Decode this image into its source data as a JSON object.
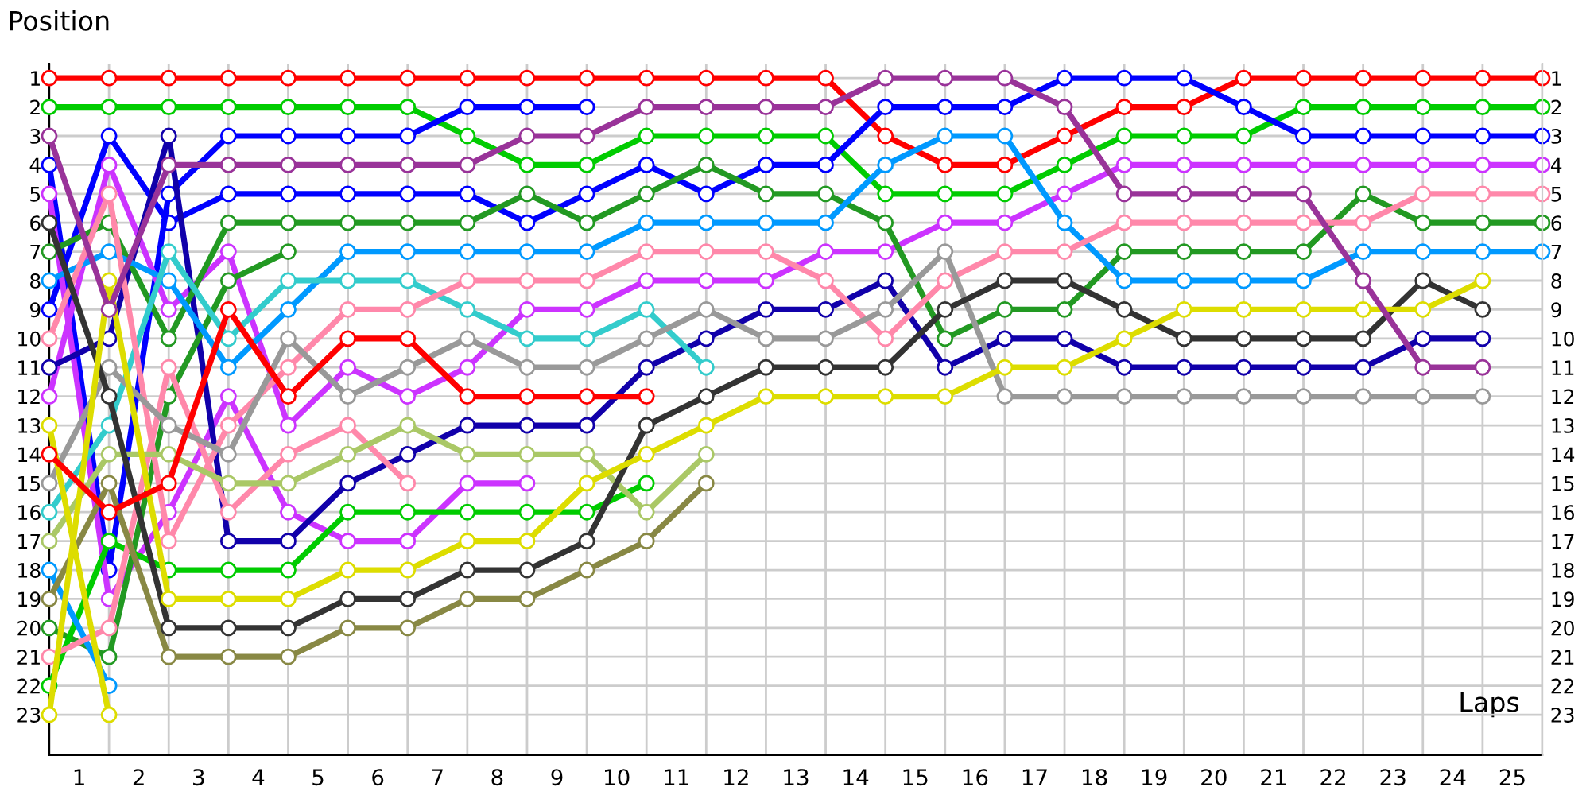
{
  "chart_data": {
    "type": "line",
    "xlabel": "Laps",
    "ylabel": "Position",
    "x": [
      0,
      1,
      2,
      3,
      4,
      5,
      6,
      7,
      8,
      9,
      10,
      11,
      12,
      13,
      14,
      15,
      16,
      17,
      18,
      19,
      20,
      21,
      22,
      23,
      24,
      25
    ],
    "xlim": [
      0,
      25
    ],
    "xticks": [
      {
        "value": 0.5,
        "label": "1"
      },
      {
        "value": 1.5,
        "label": "2"
      },
      {
        "value": 2.5,
        "label": "3"
      },
      {
        "value": 3.5,
        "label": "4"
      },
      {
        "value": 4.5,
        "label": "5"
      },
      {
        "value": 5.5,
        "label": "6"
      },
      {
        "value": 6.5,
        "label": "7"
      },
      {
        "value": 7.5,
        "label": "8"
      },
      {
        "value": 8.5,
        "label": "9"
      },
      {
        "value": 9.5,
        "label": "10"
      },
      {
        "value": 10.5,
        "label": "11"
      },
      {
        "value": 11.5,
        "label": "12"
      },
      {
        "value": 12.5,
        "label": "13"
      },
      {
        "value": 13.5,
        "label": "14"
      },
      {
        "value": 14.5,
        "label": "15"
      },
      {
        "value": 15.5,
        "label": "16"
      },
      {
        "value": 16.5,
        "label": "17"
      },
      {
        "value": 17.5,
        "label": "18"
      },
      {
        "value": 18.5,
        "label": "19"
      },
      {
        "value": 19.5,
        "label": "20"
      },
      {
        "value": 20.5,
        "label": "21"
      },
      {
        "value": 21.5,
        "label": "22"
      },
      {
        "value": 22.5,
        "label": "23"
      },
      {
        "value": 23.5,
        "label": "24"
      },
      {
        "value": 24.5,
        "label": "25"
      }
    ],
    "ylim": [
      24.4,
      0.5
    ],
    "yticks": [
      1,
      2,
      3,
      4,
      5,
      6,
      7,
      8,
      9,
      10,
      11,
      12,
      13,
      14,
      15,
      16,
      17,
      18,
      19,
      20,
      21,
      22,
      23
    ],
    "y2lim": [
      24.4,
      0.5
    ],
    "y2ticks": [
      1,
      2,
      3,
      4,
      5,
      6,
      7,
      8,
      9,
      10,
      11,
      12,
      13,
      14,
      15,
      16,
      17,
      18,
      19,
      20,
      21,
      22,
      23
    ],
    "grid": true,
    "marker": "circle",
    "line_style": "solid",
    "series": [
      {
        "color": "#ff0000",
        "values": [
          1,
          1,
          1,
          1,
          1,
          1,
          1,
          1,
          1,
          1,
          1,
          1,
          1,
          1,
          3,
          4,
          4,
          3,
          2,
          2,
          1,
          1,
          1,
          1,
          1,
          1
        ]
      },
      {
        "color": "#00cc00",
        "values": [
          2,
          2,
          2,
          2,
          2,
          2,
          2,
          3,
          4,
          4,
          3,
          3,
          3,
          3,
          5,
          5,
          5,
          4,
          3,
          3,
          3,
          2,
          2,
          2,
          2,
          2
        ]
      },
      {
        "color": "#0000ff",
        "values": [
          9,
          3,
          6,
          5,
          5,
          5,
          5,
          5,
          6,
          5,
          4,
          5,
          4,
          4,
          2,
          2,
          2,
          1,
          1,
          1,
          2,
          3,
          3,
          3,
          3,
          3
        ]
      },
      {
        "color": "#0000ff",
        "values": [
          4,
          18,
          5,
          3,
          3,
          3,
          3,
          2,
          2,
          2,
          null,
          null,
          null,
          null,
          null,
          null,
          null,
          null,
          null,
          null,
          null,
          null,
          null,
          null,
          null,
          null
        ]
      },
      {
        "color": "#cc33ff",
        "values": [
          12,
          4,
          9,
          7,
          13,
          11,
          12,
          11,
          9,
          9,
          8,
          8,
          8,
          7,
          7,
          6,
          6,
          5,
          4,
          4,
          4,
          4,
          4,
          4,
          4,
          4
        ]
      },
      {
        "color": "#cc33ff",
        "values": [
          5,
          19,
          16,
          12,
          16,
          17,
          17,
          15,
          15,
          null,
          null,
          null,
          null,
          null,
          null,
          null,
          null,
          null,
          null,
          null,
          null,
          null,
          null,
          null,
          null,
          null
        ]
      },
      {
        "color": "#1100aa",
        "values": [
          11,
          10,
          3,
          17,
          17,
          15,
          14,
          13,
          13,
          13,
          11,
          10,
          9,
          9,
          8,
          11,
          10,
          10,
          11,
          11,
          11,
          11,
          11,
          10,
          10,
          null
        ]
      },
      {
        "color": "#229922",
        "values": [
          7,
          6,
          10,
          6,
          6,
          6,
          6,
          6,
          5,
          6,
          5,
          4,
          5,
          5,
          6,
          10,
          9,
          9,
          7,
          7,
          7,
          7,
          5,
          6,
          6,
          6
        ]
      },
      {
        "color": "#229922",
        "values": [
          20,
          21,
          12,
          8,
          7,
          null,
          null,
          null,
          null,
          null,
          null,
          null,
          null,
          null,
          null,
          null,
          null,
          null,
          null,
          null,
          null,
          null,
          null,
          null,
          null,
          null
        ]
      },
      {
        "color": "#00cc00",
        "values": [
          22,
          17,
          18,
          18,
          18,
          16,
          16,
          16,
          16,
          16,
          15,
          null,
          null,
          null,
          null,
          null,
          null,
          null,
          null,
          null,
          null,
          null,
          null,
          null,
          null,
          null
        ]
      },
      {
        "color": "#0099ff",
        "values": [
          8,
          7,
          8,
          11,
          9,
          7,
          7,
          7,
          7,
          7,
          6,
          6,
          6,
          6,
          4,
          3,
          3,
          6,
          8,
          8,
          8,
          8,
          7,
          7,
          7,
          7
        ]
      },
      {
        "color": "#0099ff",
        "values": [
          18,
          22,
          null,
          null,
          null,
          null,
          null,
          null,
          null,
          null,
          null,
          null,
          null,
          null,
          null,
          null,
          null,
          null,
          null,
          null,
          null,
          null,
          null,
          null,
          null,
          null
        ]
      },
      {
        "color": "#33cccc",
        "values": [
          16,
          13,
          7,
          10,
          8,
          8,
          8,
          9,
          10,
          10,
          9,
          11,
          null,
          null,
          null,
          null,
          null,
          null,
          null,
          null,
          null,
          null,
          null,
          null,
          null,
          null
        ]
      },
      {
        "color": "#ff88aa",
        "values": [
          10,
          5,
          17,
          13,
          11,
          9,
          9,
          8,
          8,
          8,
          7,
          7,
          7,
          8,
          10,
          8,
          7,
          7,
          6,
          6,
          6,
          6,
          6,
          5,
          5,
          5
        ]
      },
      {
        "color": "#ff88aa",
        "values": [
          21,
          20,
          11,
          16,
          14,
          13,
          15,
          null,
          null,
          null,
          null,
          null,
          null,
          null,
          null,
          null,
          null,
          null,
          null,
          null,
          null,
          null,
          null,
          null,
          null,
          null
        ]
      },
      {
        "color": "#999999",
        "values": [
          15,
          11,
          13,
          14,
          10,
          12,
          11,
          10,
          11,
          11,
          10,
          9,
          10,
          10,
          9,
          7,
          12,
          12,
          12,
          12,
          12,
          12,
          12,
          12,
          12,
          null
        ]
      },
      {
        "color": "#aac866",
        "values": [
          17,
          14,
          14,
          15,
          15,
          14,
          13,
          14,
          14,
          14,
          16,
          14,
          null,
          null,
          null,
          null,
          null,
          null,
          null,
          null,
          null,
          null,
          null,
          null,
          null,
          null
        ]
      },
      {
        "color": "#888844",
        "values": [
          19,
          15,
          21,
          21,
          21,
          20,
          20,
          19,
          19,
          18,
          17,
          15,
          null,
          null,
          null,
          null,
          null,
          null,
          null,
          null,
          null,
          null,
          null,
          null,
          null,
          null
        ]
      },
      {
        "color": "#333333",
        "values": [
          6,
          12,
          20,
          20,
          20,
          19,
          19,
          18,
          18,
          17,
          13,
          12,
          11,
          11,
          11,
          9,
          8,
          8,
          9,
          10,
          10,
          10,
          10,
          8,
          9,
          null
        ]
      },
      {
        "color": "#dddd00",
        "values": [
          23,
          8,
          19,
          19,
          19,
          18,
          18,
          17,
          17,
          15,
          14,
          13,
          12,
          12,
          12,
          12,
          11,
          11,
          10,
          9,
          9,
          9,
          9,
          9,
          8,
          null
        ]
      },
      {
        "color": "#dddd00",
        "values": [
          13,
          23,
          null,
          null,
          null,
          null,
          null,
          null,
          null,
          null,
          null,
          null,
          null,
          null,
          null,
          null,
          null,
          null,
          null,
          null,
          null,
          null,
          null,
          null,
          null,
          null
        ]
      },
      {
        "color": "#ff0000",
        "values": [
          14,
          16,
          15,
          9,
          12,
          10,
          10,
          12,
          12,
          12,
          12,
          null,
          null,
          null,
          null,
          null,
          null,
          null,
          null,
          null,
          null,
          null,
          null,
          null,
          null,
          null
        ]
      },
      {
        "color": "#993399",
        "values": [
          3,
          9,
          4,
          4,
          4,
          4,
          4,
          4,
          3,
          3,
          2,
          2,
          2,
          2,
          1,
          1,
          1,
          2,
          5,
          5,
          5,
          5,
          8,
          11,
          11,
          null
        ]
      }
    ]
  }
}
